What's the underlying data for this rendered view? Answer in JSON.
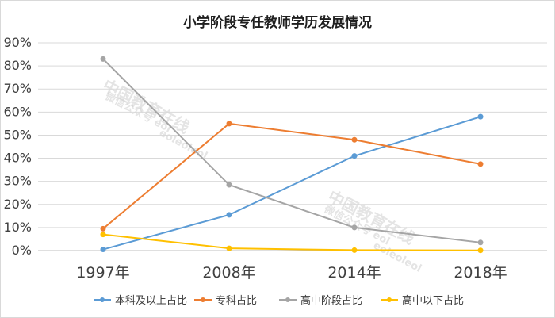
{
  "chart_data": {
    "type": "line",
    "title": "小学阶段专任教师学历发展情况",
    "categories": [
      "1997年",
      "2008年",
      "2014年",
      "2018年"
    ],
    "ylim": [
      0,
      90
    ],
    "yticks": [
      "0%",
      "10%",
      "20%",
      "30%",
      "40%",
      "50%",
      "60%",
      "70%",
      "80%",
      "90%"
    ],
    "grid": true,
    "legend_position": "bottom",
    "series": [
      {
        "name": "本科及以上占比",
        "color": "#5b9bd5",
        "values": [
          0.5,
          15.5,
          41,
          58
        ]
      },
      {
        "name": "专科占比",
        "color": "#ed7d31",
        "values": [
          9.5,
          55,
          48,
          37.5
        ]
      },
      {
        "name": "高中阶段占比",
        "color": "#a5a5a5",
        "values": [
          83,
          28.5,
          10,
          3.5
        ]
      },
      {
        "name": "高中以下占比",
        "color": "#ffc000",
        "values": [
          7,
          1,
          0.2,
          0.1
        ]
      }
    ]
  },
  "watermark": {
    "line1": "中国教育在线",
    "line2": "微信公众号 eol",
    "line3": "eoleoleol"
  }
}
